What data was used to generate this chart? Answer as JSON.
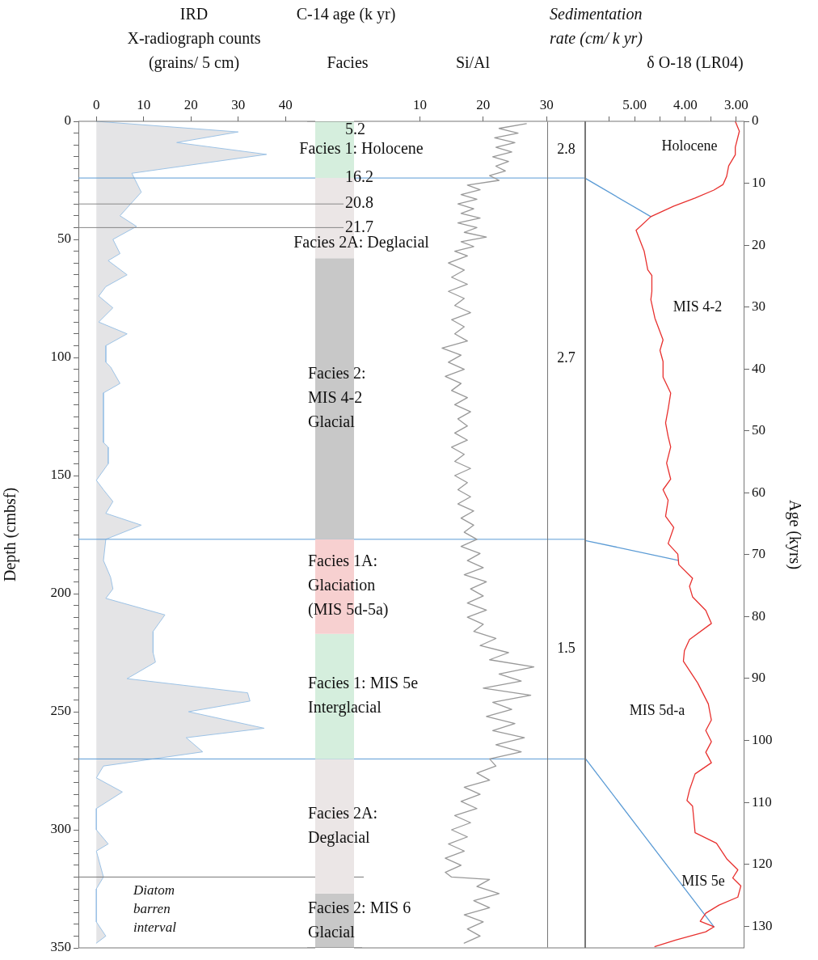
{
  "chart_data": [
    {
      "type": "area",
      "orientation": "horizontal",
      "title": "IRD",
      "xlabel": "X-radiograph counts (grains/ 5 cm)",
      "ylabel": "Depth (cmbsf)",
      "color": "#e4e4e6",
      "x": [
        0,
        4.5,
        9,
        14,
        22,
        30,
        40,
        44.5,
        50,
        56,
        59,
        65,
        70,
        74,
        79,
        85,
        90,
        95,
        102,
        104,
        111,
        115,
        136,
        138,
        145,
        152,
        156,
        161,
        166,
        171,
        177,
        186,
        193,
        198,
        202,
        209,
        216,
        225,
        229,
        236,
        242,
        245.5,
        250,
        257,
        261,
        267,
        273,
        278,
        284,
        291,
        300,
        306,
        309,
        320,
        325,
        339,
        345,
        348
      ],
      "values": [
        0,
        30,
        17,
        36,
        7.5,
        9.5,
        5,
        8.5,
        3.5,
        5,
        2.5,
        6.5,
        2,
        0.5,
        3.5,
        0.5,
        6.5,
        2,
        2,
        3,
        5,
        1.5,
        1.5,
        2.5,
        2.5,
        0,
        1.5,
        3.5,
        2,
        9.5,
        2,
        1.5,
        3,
        3.5,
        2,
        14.5,
        12,
        12,
        12.5,
        6.5,
        32,
        32.5,
        19.5,
        35.5,
        19,
        22.5,
        1.5,
        0,
        5.5,
        0,
        0,
        2.5,
        0,
        1.5,
        0,
        0,
        2,
        0
      ],
      "xlim": [
        -3.8,
        46.3
      ],
      "xticks": [
        0,
        10,
        20,
        30,
        40
      ],
      "ylim": [
        350,
        0
      ],
      "yticks": [
        0,
        {
          "value": 5,
          "label": null
        },
        {
          "value": 10,
          "label": null
        },
        {
          "value": 15,
          "label": null
        },
        {
          "value": 20,
          "label": null
        },
        {
          "value": 25,
          "label": null
        },
        {
          "value": 30,
          "label": null
        },
        {
          "value": 35,
          "label": null
        },
        {
          "value": 40,
          "label": null
        },
        {
          "value": 45,
          "label": null
        },
        50,
        {
          "value": 55,
          "label": null
        },
        {
          "value": 60,
          "label": null
        },
        {
          "value": 65,
          "label": null
        },
        {
          "value": 70,
          "label": null
        },
        {
          "value": 75,
          "label": null
        },
        {
          "value": 80,
          "label": null
        },
        {
          "value": 85,
          "label": null
        },
        {
          "value": 90,
          "label": null
        },
        {
          "value": 95,
          "label": null
        },
        100,
        {
          "value": 105,
          "label": null
        },
        {
          "value": 110,
          "label": null
        },
        {
          "value": 115,
          "label": null
        },
        {
          "value": 120,
          "label": null
        },
        {
          "value": 125,
          "label": null
        },
        {
          "value": 130,
          "label": null
        },
        {
          "value": 135,
          "label": null
        },
        {
          "value": 140,
          "label": null
        },
        {
          "value": 145,
          "label": null
        },
        150,
        {
          "value": 155,
          "label": null
        },
        {
          "value": 160,
          "label": null
        },
        {
          "value": 165,
          "label": null
        },
        {
          "value": 170,
          "label": null
        },
        {
          "value": 175,
          "label": null
        },
        {
          "value": 180,
          "label": null
        },
        {
          "value": 185,
          "label": null
        },
        {
          "value": 190,
          "label": null
        },
        {
          "value": 195,
          "label": null
        },
        200,
        {
          "value": 205,
          "label": null
        },
        {
          "value": 210,
          "label": null
        },
        {
          "value": 215,
          "label": null
        },
        {
          "value": 220,
          "label": null
        },
        {
          "value": 225,
          "label": null
        },
        {
          "value": 230,
          "label": null
        },
        {
          "value": 235,
          "label": null
        },
        {
          "value": 240,
          "label": null
        },
        {
          "value": 245,
          "label": null
        },
        250,
        {
          "value": 255,
          "label": null
        },
        {
          "value": 260,
          "label": null
        },
        {
          "value": 265,
          "label": null
        },
        {
          "value": 270,
          "label": null
        },
        {
          "value": 275,
          "label": null
        },
        {
          "value": 280,
          "label": null
        },
        {
          "value": 285,
          "label": null
        },
        {
          "value": 290,
          "label": null
        },
        {
          "value": 295,
          "label": null
        },
        300,
        {
          "value": 305,
          "label": null
        },
        {
          "value": 310,
          "label": null
        },
        {
          "value": 315,
          "label": null
        },
        {
          "value": 320,
          "label": null
        },
        {
          "value": 325,
          "label": null
        },
        {
          "value": 330,
          "label": null
        },
        {
          "value": 335,
          "label": null
        },
        {
          "value": 340,
          "label": null
        },
        {
          "value": 345,
          "label": null
        },
        350
      ],
      "ref_lines": [
        {
          "axis": "y",
          "value": 24,
          "color": "#5b9bd5"
        },
        {
          "axis": "y",
          "value": 177,
          "color": "#5b9bd5"
        },
        {
          "axis": "y",
          "value": 270,
          "color": "#5b9bd5"
        },
        {
          "axis": "y",
          "value": 320,
          "color": "#777777",
          "label": "Diatom\nbarren\ninterval"
        }
      ]
    },
    {
      "type": "bar",
      "stacked": true,
      "title": "C-14 age (k yr)",
      "subtitle": "Facies",
      "categories": [
        null
      ],
      "ylim": [
        350,
        0
      ],
      "tick_labels": false,
      "series": [
        {
          "name": "Facies 1: Holocene",
          "color": "#d5eedd",
          "values": [
            24
          ]
        },
        {
          "name": "Facies 2A: Deglacial",
          "color": "#ebe6e6",
          "values": [
            34
          ]
        },
        {
          "name": "Facies 2:\nMIS 4-2\nGlacial",
          "color": "#c8c8c8",
          "values": [
            119
          ]
        },
        {
          "name": "Facies 1A:\nGlaciation\n(MIS 5d-5a)",
          "color": "#f7d0d0",
          "values": [
            40
          ]
        },
        {
          "name": "Facies 1: MIS 5e\nInterglacial",
          "color": "#d5eedd",
          "values": [
            53
          ]
        },
        {
          "name": "Facies 2A:\nDeglacial",
          "color": "#ebe6e6",
          "values": [
            57
          ]
        },
        {
          "name": "Facies 2: MIS 6\nGlacial",
          "color": "#c8c8c8",
          "values": [
            23
          ]
        }
      ],
      "ref_lines": [
        {
          "axis": "y",
          "value": 35,
          "color": "#888888"
        },
        {
          "axis": "y",
          "value": 45,
          "color": "#888888"
        }
      ],
      "annotations": [
        {
          "text": "5.2",
          "y": 0
        },
        {
          "text": "16.2",
          "y": 24
        },
        "20.8",
        "21.7"
      ]
    },
    {
      "type": "line",
      "orientation": "horizontal",
      "title": "Si/Al",
      "color": "#999999",
      "xlim": [
        -0.4,
        36.1
      ],
      "xticks": [
        10,
        20,
        30
      ],
      "ylim": [
        350,
        0
      ],
      "tick_labels": "x",
      "x": [
        1,
        3,
        5,
        7,
        9,
        11,
        13,
        15,
        17,
        19,
        21,
        23,
        25,
        27,
        29,
        31,
        33,
        35,
        37,
        39,
        41,
        43,
        45,
        47,
        49,
        51,
        53,
        55,
        57,
        60,
        63,
        66,
        69,
        72,
        75,
        78,
        81,
        84,
        87,
        90,
        93,
        96,
        99,
        102,
        105,
        108,
        111,
        114,
        117,
        120,
        123,
        126,
        129,
        132,
        135,
        138,
        141,
        144,
        147,
        150,
        153,
        156,
        159,
        162,
        165,
        168,
        171,
        174,
        177,
        180,
        183,
        186,
        189,
        192,
        195,
        198,
        201,
        204,
        207,
        210,
        213,
        216,
        219,
        222,
        225,
        228,
        231,
        234,
        237,
        240,
        243,
        246,
        249,
        252,
        255,
        258,
        261,
        264,
        267,
        270,
        273,
        276,
        279,
        282,
        285,
        288,
        291,
        294,
        297,
        300,
        303,
        306,
        309,
        312,
        315,
        318,
        320,
        321,
        324,
        327,
        330,
        333,
        336,
        339,
        342,
        345,
        348
      ],
      "values": [
        26.8,
        22.5,
        25.5,
        21.8,
        25,
        22,
        24.5,
        21.5,
        24,
        22,
        23.5,
        21,
        22.5,
        17.5,
        19.5,
        16.5,
        19,
        16,
        18.5,
        16.5,
        19.5,
        16,
        19,
        17,
        20.5,
        16.5,
        18.5,
        15.5,
        17.5,
        14.5,
        17,
        15,
        17.5,
        14.5,
        17,
        15.5,
        18,
        15,
        17,
        15.5,
        17.5,
        13.5,
        16.5,
        14.5,
        17,
        14,
        16.5,
        15,
        17.5,
        15.5,
        18,
        16,
        17.5,
        15.5,
        17.5,
        15,
        17,
        15.5,
        18,
        15.5,
        17.5,
        16,
        18,
        16,
        18.5,
        16.5,
        18.5,
        17,
        19,
        16.5,
        19.5,
        17.5,
        20,
        17,
        20.5,
        18,
        20,
        17.5,
        20.5,
        17.5,
        20,
        18.5,
        22,
        19.5,
        24,
        21,
        28,
        22.5,
        26,
        20,
        27.5,
        21.5,
        24.5,
        20.5,
        25,
        21.5,
        26.5,
        22,
        26,
        21,
        22,
        19,
        21,
        17,
        19.5,
        16.5,
        19,
        15.5,
        18,
        15,
        17.5,
        14.5,
        17,
        14,
        16.5,
        14,
        15,
        21,
        19,
        22.5,
        18.5,
        21,
        17,
        20,
        17.5,
        19.5,
        17
      ]
    },
    {
      "type": "other",
      "title": "Sedimentation rate (cm/ k yr)",
      "annotations": [
        "2.8",
        "2.7",
        "1.5"
      ]
    },
    {
      "type": "line",
      "orientation": "horizontal",
      "title": "δ O-18 (LR04)",
      "ylabel": "Age (kyrs)",
      "xlim": [
        5.97,
        2.84
      ],
      "xticks": [
        {
          "value": 5.5,
          "label": null
        },
        {
          "value": 5,
          "label": "5.00"
        },
        {
          "value": 4.5,
          "label": null
        },
        {
          "value": 4,
          "label": "4.00"
        },
        {
          "value": 3.5,
          "label": null
        },
        {
          "value": 3,
          "label": "3.00"
        }
      ],
      "ylim": [
        133.5,
        0
      ],
      "yticks": [
        0,
        10,
        20,
        30,
        40,
        50,
        60,
        70,
        80,
        90,
        100,
        110,
        120,
        130
      ],
      "series": [
        {
          "color": "#e8312f",
          "x": [
            0,
            1.6,
            4.2,
            5.4,
            7.2,
            8.9,
            10.2,
            11.1,
            12.4,
            13.7,
            15.4,
            17.6,
            19.3,
            21.0,
            24.0,
            24.9,
            27.5,
            28.8,
            31.8,
            35.3,
            37.0,
            38.8,
            41.3,
            43.9,
            46.5,
            48.7,
            50.9,
            52.6,
            55.2,
            57.8,
            59.5,
            61.2,
            63.8,
            65.6,
            68.2,
            69.9,
            71.6,
            73.8,
            75.1,
            76.8,
            79.0,
            81.1,
            83.7,
            85.5,
            87.2,
            90.7,
            94.1,
            96.7,
            98.4,
            100.2,
            101.9,
            103.6,
            105.4,
            108.0,
            109.7,
            110.6,
            114.9,
            116.6,
            119.2,
            120.9,
            122.2,
            123.5,
            125.3,
            126.6,
            127.9,
            129.2,
            130.1,
            130.9,
            132.2,
            133.3
          ],
          "values": [
            3.02,
            2.94,
            3.02,
            3.02,
            3.15,
            3.19,
            3.26,
            3.44,
            3.81,
            4.23,
            4.68,
            4.97,
            4.89,
            4.81,
            4.74,
            4.66,
            4.66,
            4.68,
            4.6,
            4.44,
            4.5,
            4.44,
            4.44,
            4.29,
            4.34,
            4.39,
            4.34,
            4.29,
            4.37,
            4.29,
            4.44,
            4.34,
            4.39,
            4.23,
            4.34,
            4.15,
            4.13,
            3.86,
            3.92,
            3.86,
            3.6,
            3.49,
            3.92,
            4.02,
            4.04,
            3.76,
            3.55,
            3.49,
            3.6,
            3.49,
            3.6,
            3.49,
            3.81,
            3.92,
            3.97,
            3.86,
            3.81,
            3.39,
            3.18,
            2.97,
            3.07,
            2.91,
            2.97,
            3.34,
            3.6,
            3.71,
            3.44,
            3.6,
            4.18,
            4.6
          ]
        },
        {
          "color": "#5b9bd5",
          "x": [
            9.2,
            15.4
          ],
          "values": [
            5.97,
            4.68
          ]
        },
        {
          "color": "#5b9bd5",
          "x": [
            67.7,
            70.9
          ],
          "values": [
            5.97,
            4.14
          ]
        },
        {
          "color": "#5b9bd5",
          "x": [
            102.9,
            130.1
          ],
          "values": [
            5.97,
            3.44
          ]
        }
      ],
      "annotations": [
        "Holocene",
        "MIS 4-2",
        "MIS 5d-a",
        "MIS 5e"
      ]
    }
  ]
}
